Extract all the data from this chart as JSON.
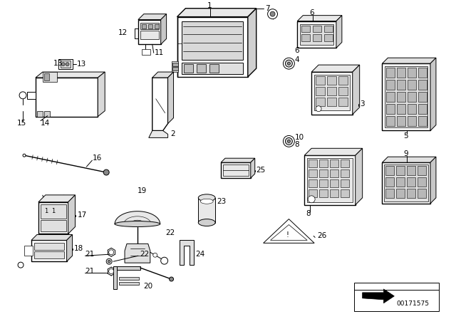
{
  "background_color": "#ffffff",
  "line_color": "#000000",
  "part_number": "00171575",
  "figsize": [
    6.4,
    4.48
  ],
  "dpi": 100
}
